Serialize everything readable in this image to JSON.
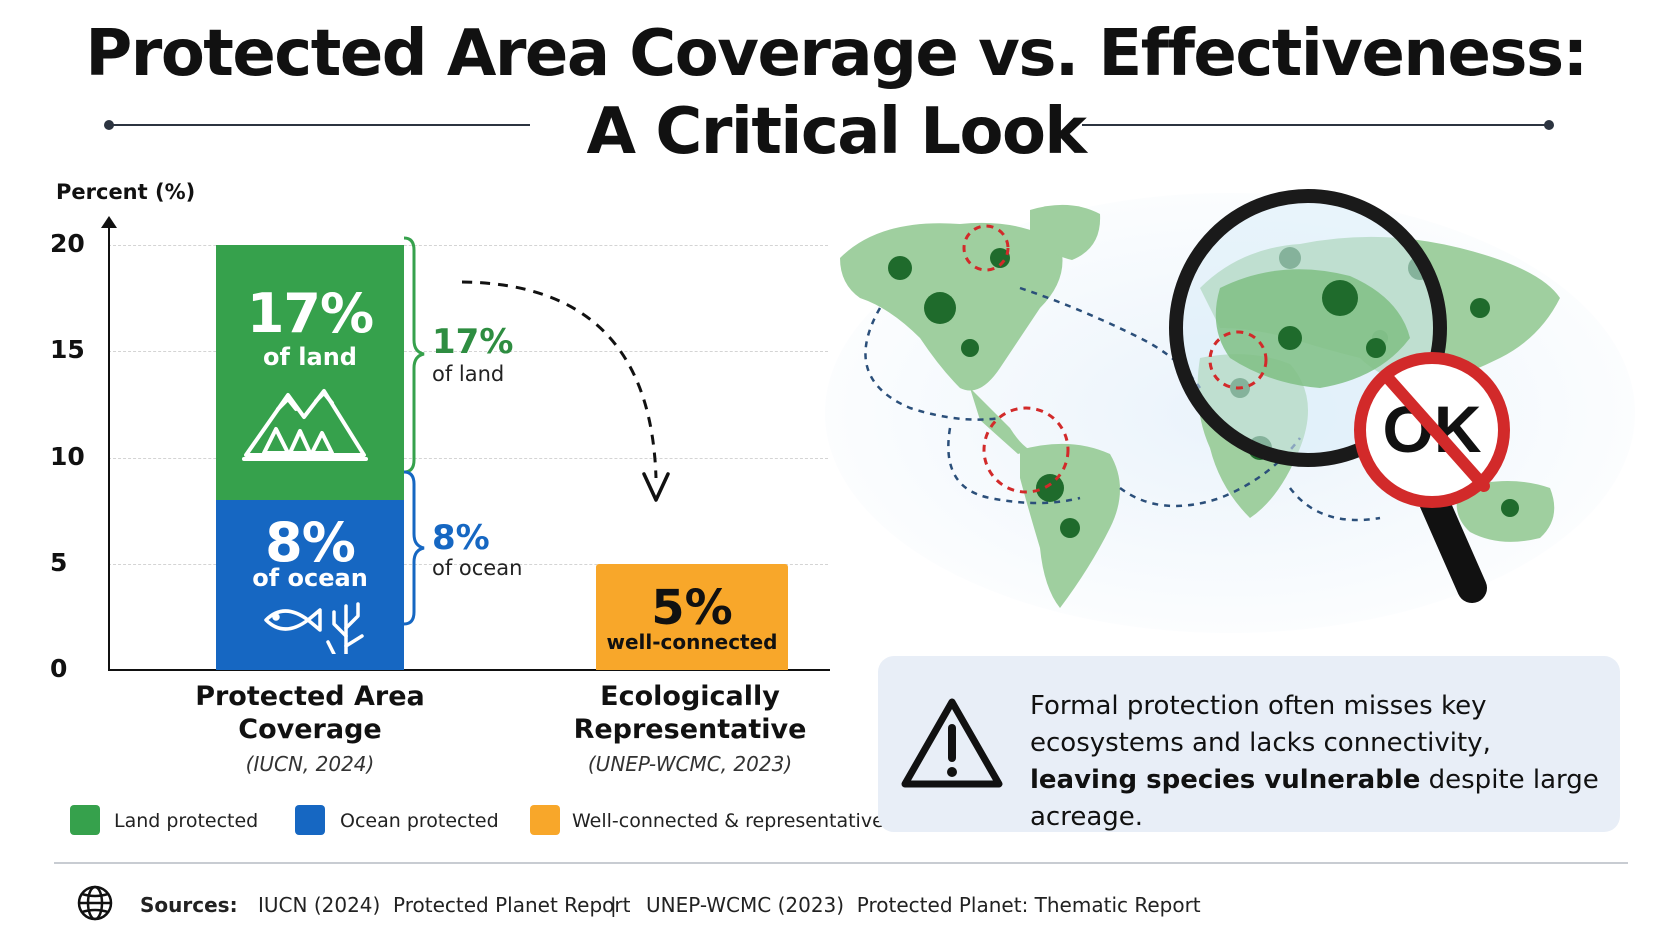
{
  "header": {
    "title_line1": "Protected Area Coverage vs. Effectiveness:",
    "title_line2": "A Critical Look"
  },
  "chart_data": {
    "type": "bar",
    "ylabel": "Percent (%)",
    "ylim": [
      0,
      20
    ],
    "yticks": [
      0,
      5,
      10,
      15,
      20
    ],
    "grid": true,
    "categories": [
      {
        "label": "Protected Area Coverage",
        "source": "(IUCN, 2024)"
      },
      {
        "label": "Ecologically Representative",
        "source": "(UNEP-WCMC, 2023)"
      }
    ],
    "series": [
      {
        "name": "Land protected",
        "color": "#36a14c",
        "values": [
          17,
          0
        ],
        "big": "17%",
        "sub": "of land"
      },
      {
        "name": "Ocean protected",
        "color": "#1667c2",
        "values": [
          8,
          0
        ],
        "big": "8%",
        "sub": "of ocean"
      },
      {
        "name": "Well-connected & representative",
        "color": "#f8a72a",
        "values": [
          0,
          5
        ],
        "big": "5%",
        "sub": "well-connected"
      }
    ],
    "annotations": {
      "land_value": "17%",
      "land_sub": "of land",
      "ocean_value": "8%",
      "ocean_sub": "of ocean"
    },
    "legend": {
      "position": "bottom-left"
    }
  },
  "map": {
    "stamp_text": "OK",
    "accent_land": "#4f9f5e",
    "accent_dark": "#1f6b2c",
    "route_color": "#2b4f7a",
    "circle_color": "#d22a2a"
  },
  "callout": {
    "icon": "warning-triangle-icon",
    "text_before": "Formal protection often misses key ecosystems and lacks connectivity, ",
    "text_bold": "leaving species vulnerable",
    "text_after": " despite large acreage."
  },
  "footer": {
    "icon": "globe-icon",
    "label": "Sources:",
    "source1": "IUCN (2024)  Protected Planet Report",
    "separator": "|",
    "source2": "UNEP-WCMC (2023)  Protected Planet: Thematic Report"
  }
}
